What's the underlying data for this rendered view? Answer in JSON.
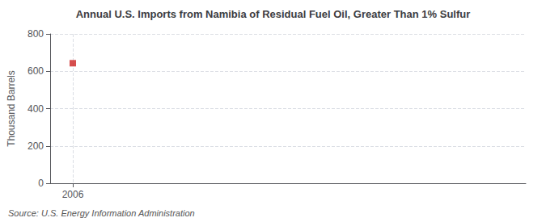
{
  "chart_data": {
    "type": "scatter",
    "title": "Annual U.S. Imports from Namibia of Residual Fuel Oil, Greater Than 1% Sulfur",
    "ylabel": "Thousand Barrels",
    "annotation": "Source: U.S. Energy Information Administration",
    "x": [
      2006
    ],
    "values": [
      643
    ],
    "color": "#cc2222",
    "marker": "square",
    "xlim": [
      2005.5,
      2016
    ],
    "xticks": [
      2006
    ],
    "ylim": [
      0,
      800
    ],
    "yticks": [
      0,
      200,
      400,
      600,
      800
    ],
    "grid": true
  }
}
